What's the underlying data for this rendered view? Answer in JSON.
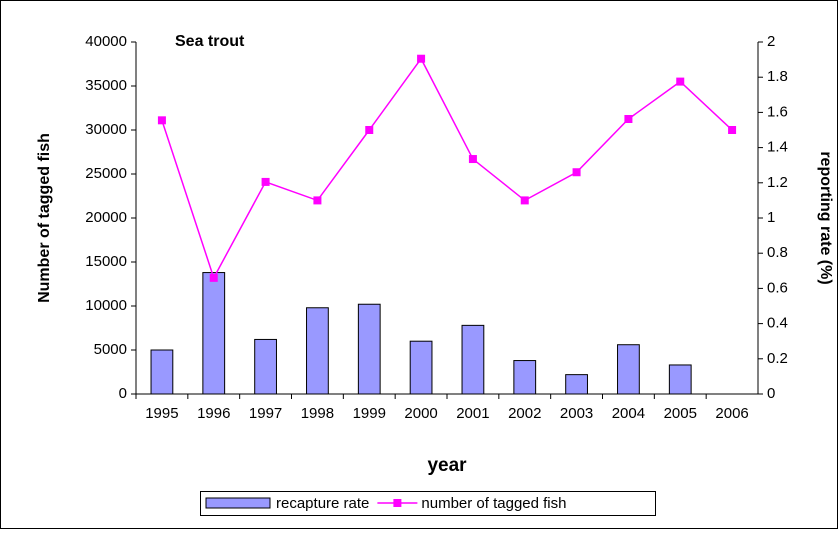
{
  "chart_data": {
    "type": "bar-line",
    "title": "Sea trout",
    "x_label": "year",
    "y_label": "Number of tagged fish",
    "y2_label": "reporting rate (%)",
    "categories": [
      "1995",
      "1996",
      "1997",
      "1998",
      "1999",
      "2000",
      "2001",
      "2002",
      "2003",
      "2004",
      "2005",
      "2006"
    ],
    "series": [
      {
        "name": "recapture rate",
        "type": "bar",
        "axis": "y2",
        "color": "#9999ff",
        "values": [
          0.25,
          0.69,
          0.31,
          0.49,
          0.51,
          0.3,
          0.39,
          0.19,
          0.11,
          0.28,
          0.165,
          null
        ]
      },
      {
        "name": "number of tagged fish",
        "type": "line",
        "color": "#ff00ff",
        "values": [
          31100,
          13200,
          24100,
          22000,
          30000,
          38100,
          26700,
          22000,
          25200,
          31250,
          35500,
          30000
        ]
      }
    ],
    "ylim": [
      0,
      40000
    ],
    "yticks": [
      0,
      5000,
      10000,
      15000,
      20000,
      25000,
      30000,
      35000,
      40000
    ],
    "y2lim": [
      0,
      2
    ],
    "y2ticks": [
      0,
      0.2,
      0.4,
      0.6,
      0.8,
      1,
      1.2,
      1.4,
      1.6,
      1.8,
      2
    ]
  }
}
